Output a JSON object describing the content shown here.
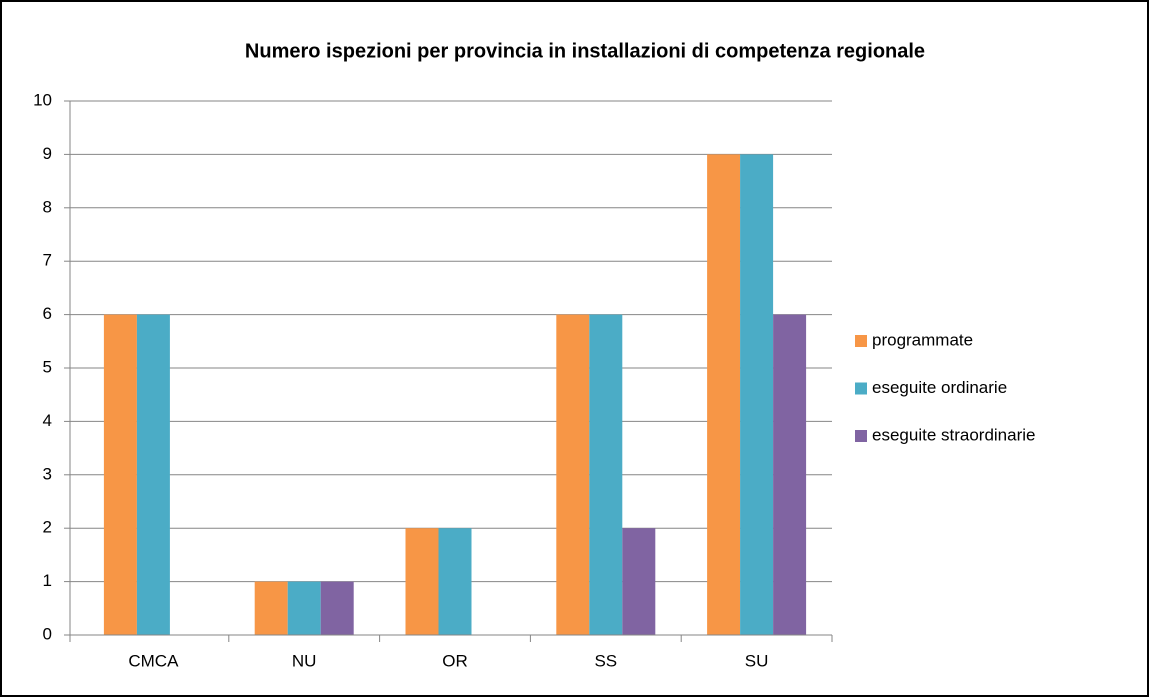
{
  "chart_data": {
    "type": "bar",
    "title": "Numero ispezioni  per provincia in installazioni di competenza regionale",
    "categories": [
      "CMCA",
      "NU",
      "OR",
      "SS",
      "SU"
    ],
    "series": [
      {
        "name": "programmate",
        "color": "#f79646",
        "values": [
          6,
          1,
          2,
          6,
          9
        ]
      },
      {
        "name": "eseguite ordinarie",
        "color": "#4bacc6",
        "values": [
          6,
          1,
          2,
          6,
          9
        ]
      },
      {
        "name": "eseguite straordinarie",
        "color": "#8064a2",
        "values": [
          0,
          1,
          0,
          2,
          6
        ]
      }
    ],
    "ylim": [
      0,
      10
    ],
    "yticks": [
      0,
      1,
      2,
      3,
      4,
      5,
      6,
      7,
      8,
      9,
      10
    ],
    "grid": true,
    "legend": "right"
  }
}
